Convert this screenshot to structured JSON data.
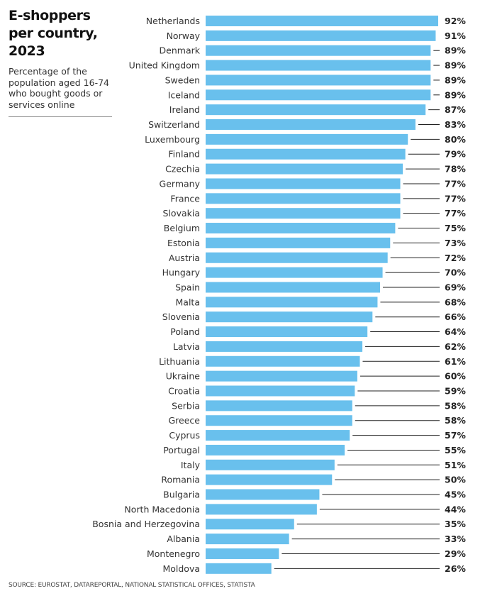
{
  "header": {
    "title": "E-shoppers per country, 2023",
    "subtitle": "Percentage of the population aged 16-74 who bought goods or services online"
  },
  "source": "SOURCE: EUROSTAT, DATAREPORTAL, NATIONAL STATISTICAL OFFICES, STATISTA",
  "colors": {
    "bar": "#69c0ed",
    "leader": "#222222",
    "text": "#333333"
  },
  "chart_data": {
    "type": "bar",
    "orientation": "horizontal",
    "title": "E-shoppers per country, 2023",
    "ylabel": "",
    "xlabel": "Percentage of the population aged 16-74 who bought goods or services online",
    "xlim": [
      0,
      100
    ],
    "grid": false,
    "value_suffix": "%",
    "categories": [
      "Netherlands",
      "Norway",
      "Denmark",
      "United Kingdom",
      "Sweden",
      "Iceland",
      "Ireland",
      "Switzerland",
      "Luxembourg",
      "Finland",
      "Czechia",
      "Germany",
      "France",
      "Slovakia",
      "Belgium",
      "Estonia",
      "Austria",
      "Hungary",
      "Spain",
      "Malta",
      "Slovenia",
      "Poland",
      "Latvia",
      "Lithuania",
      "Ukraine",
      "Croatia",
      "Serbia",
      "Greece",
      "Cyprus",
      "Portugal",
      "Italy",
      "Romania",
      "Bulgaria",
      "North Macedonia",
      "Bosnia and Herzegovina",
      "Albania",
      "Montenegro",
      "Moldova"
    ],
    "values": [
      92,
      91,
      89,
      89,
      89,
      89,
      87,
      83,
      80,
      79,
      78,
      77,
      77,
      77,
      75,
      73,
      72,
      70,
      69,
      68,
      66,
      64,
      62,
      61,
      60,
      59,
      58,
      58,
      57,
      55,
      51,
      50,
      45,
      44,
      35,
      33,
      29,
      26
    ]
  }
}
